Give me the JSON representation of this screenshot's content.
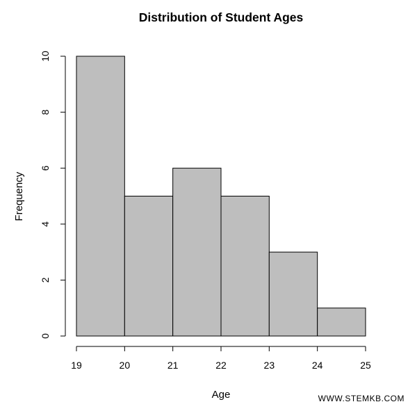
{
  "chart_data": {
    "type": "histogram",
    "title": "Distribution of Student Ages",
    "xlabel": "Age",
    "ylabel": "Frequency",
    "bins": [
      {
        "from": 19,
        "to": 20,
        "count": 10
      },
      {
        "from": 20,
        "to": 21,
        "count": 5
      },
      {
        "from": 21,
        "to": 22,
        "count": 6
      },
      {
        "from": 22,
        "to": 23,
        "count": 5
      },
      {
        "from": 23,
        "to": 24,
        "count": 3
      },
      {
        "from": 24,
        "to": 25,
        "count": 1
      }
    ],
    "xlim": [
      19,
      25
    ],
    "ylim": [
      0,
      10
    ],
    "x_ticks": [
      "19",
      "20",
      "21",
      "22",
      "23",
      "24",
      "25"
    ],
    "y_ticks": [
      "0",
      "2",
      "4",
      "6",
      "8",
      "10"
    ],
    "bar_fill": "#bebebe",
    "bar_stroke": "#000000",
    "grid": false,
    "legend": "none"
  },
  "watermark": "WWW.STEMKB.COM"
}
